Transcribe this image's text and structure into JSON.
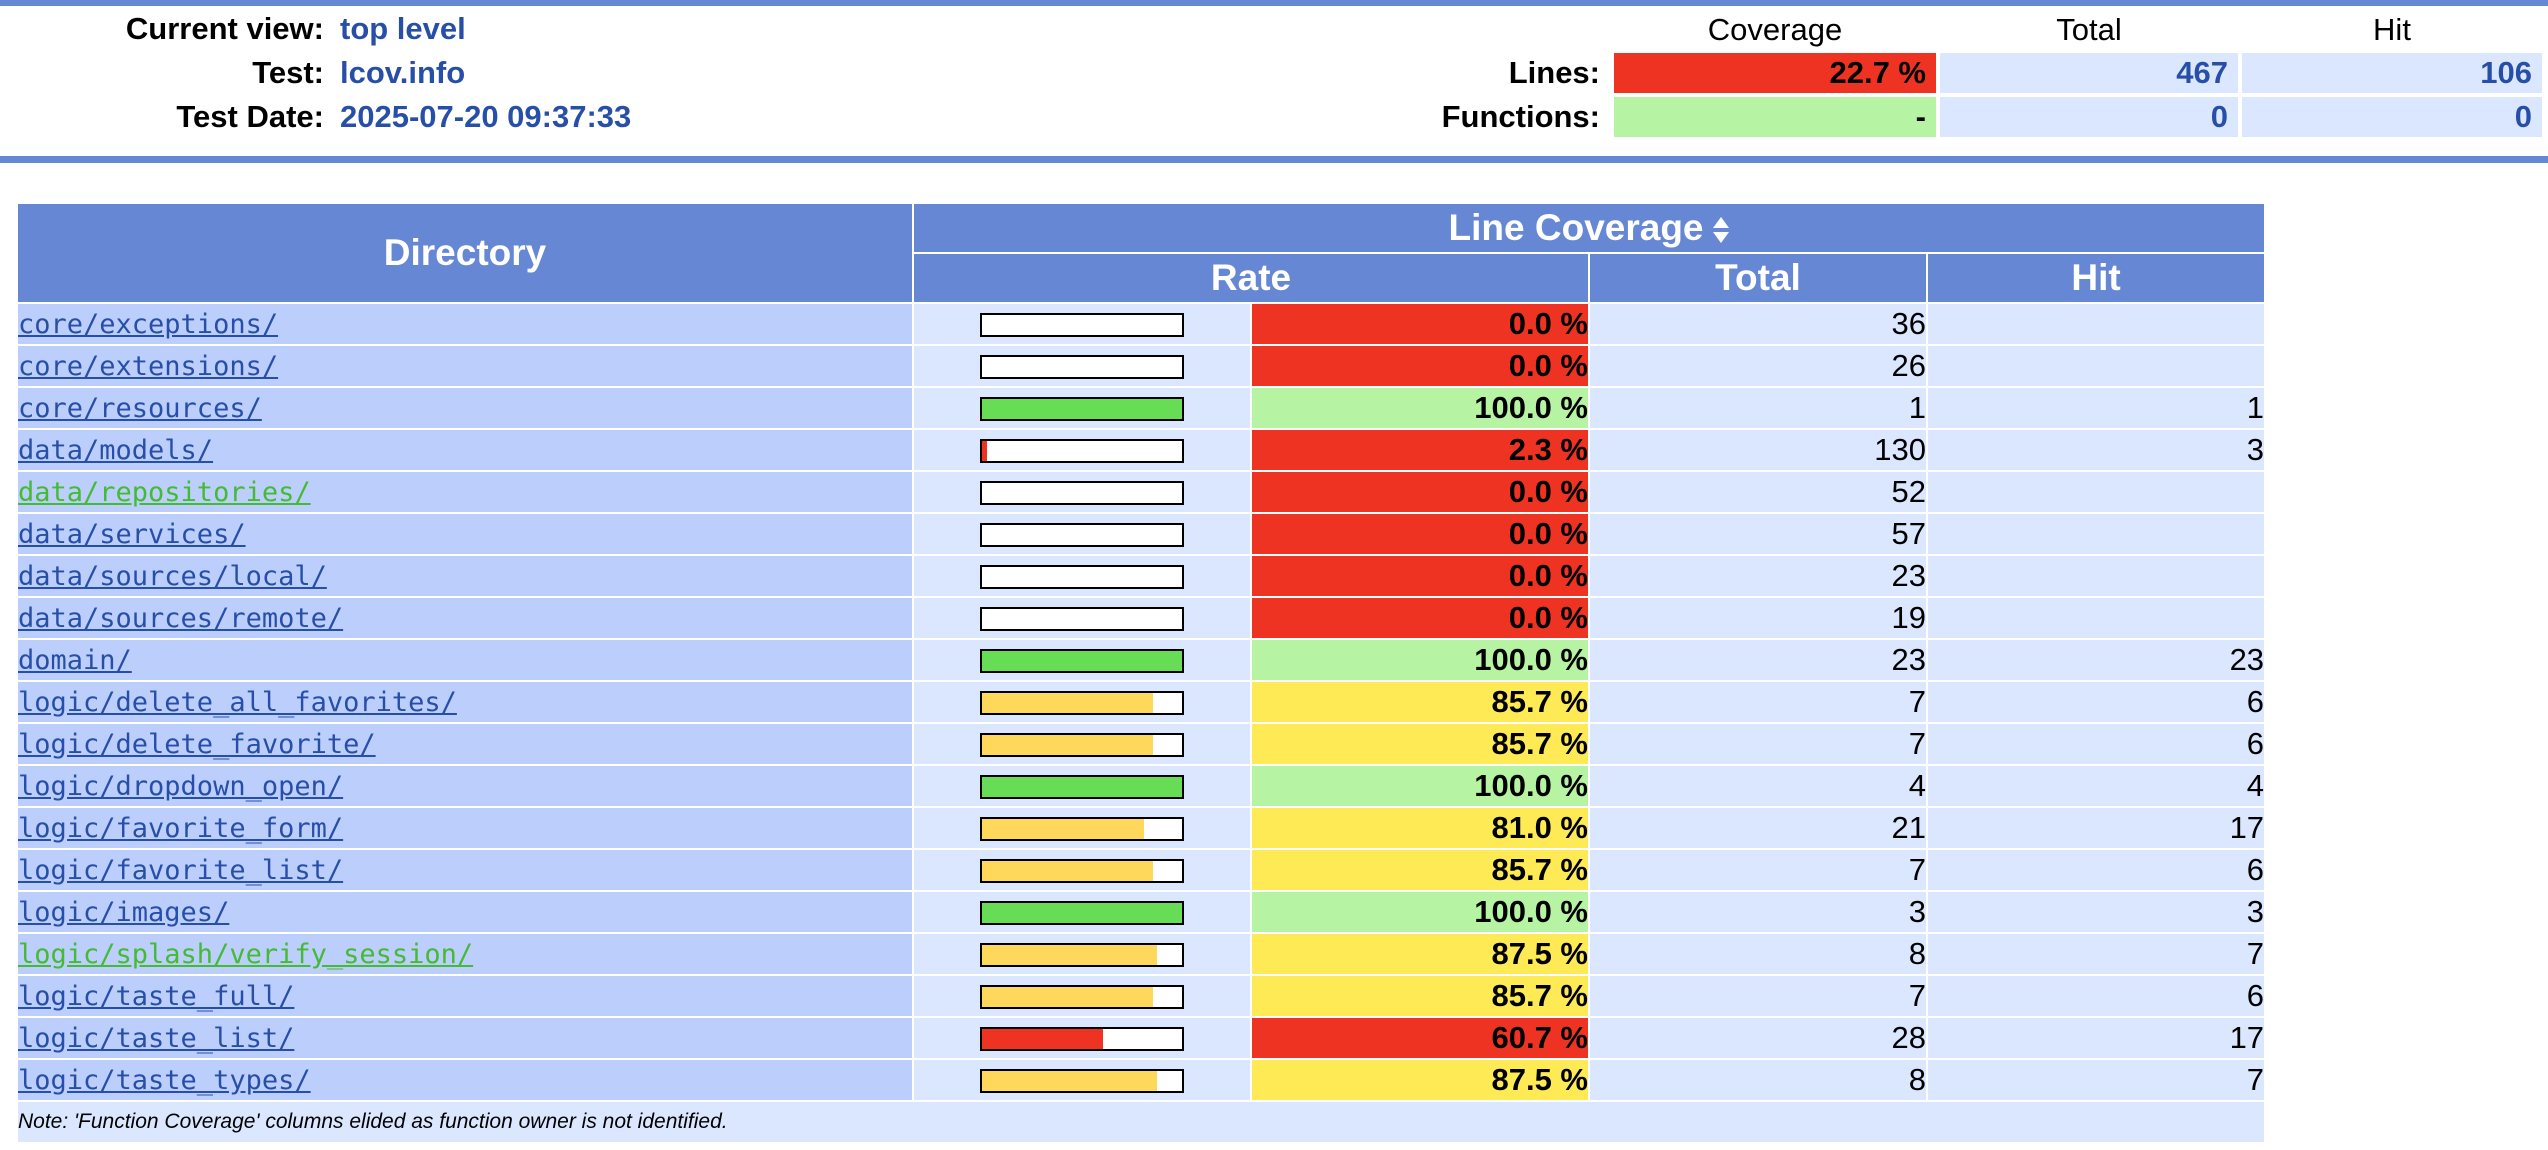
{
  "header": {
    "current_view_label": "Current view:",
    "current_view_value": "top level",
    "test_label": "Test:",
    "test_value": "lcov.info",
    "test_date_label": "Test Date:",
    "test_date_value": "2025-07-20 09:37:33"
  },
  "summary": {
    "col_coverage": "Coverage",
    "col_total": "Total",
    "col_hit": "Hit",
    "lines_label": "Lines:",
    "lines_coverage": "22.7 %",
    "lines_total": "467",
    "lines_hit": "106",
    "functions_label": "Functions:",
    "functions_coverage": "-",
    "functions_total": "0",
    "functions_hit": "0"
  },
  "table": {
    "col_directory": "Directory",
    "col_line_coverage": "Line Coverage",
    "col_rate": "Rate",
    "col_total": "Total",
    "col_hit": "Hit",
    "rows": [
      {
        "name": "core/exceptions/",
        "rate": "0.0 %",
        "pct": 0,
        "total": "36",
        "hit": "",
        "level": "lo",
        "link_color": "blue"
      },
      {
        "name": "core/extensions/",
        "rate": "0.0 %",
        "pct": 0,
        "total": "26",
        "hit": "",
        "level": "lo",
        "link_color": "blue"
      },
      {
        "name": "core/resources/",
        "rate": "100.0 %",
        "pct": 100,
        "total": "1",
        "hit": "1",
        "level": "hi",
        "link_color": "blue"
      },
      {
        "name": "data/models/",
        "rate": "2.3 %",
        "pct": 2.3,
        "total": "130",
        "hit": "3",
        "level": "lo",
        "link_color": "blue"
      },
      {
        "name": "data/repositories/",
        "rate": "0.0 %",
        "pct": 0,
        "total": "52",
        "hit": "",
        "level": "lo",
        "link_color": "green"
      },
      {
        "name": "data/services/",
        "rate": "0.0 %",
        "pct": 0,
        "total": "57",
        "hit": "",
        "level": "lo",
        "link_color": "blue"
      },
      {
        "name": "data/sources/local/",
        "rate": "0.0 %",
        "pct": 0,
        "total": "23",
        "hit": "",
        "level": "lo",
        "link_color": "blue"
      },
      {
        "name": "data/sources/remote/",
        "rate": "0.0 %",
        "pct": 0,
        "total": "19",
        "hit": "",
        "level": "lo",
        "link_color": "blue"
      },
      {
        "name": "domain/",
        "rate": "100.0 %",
        "pct": 100,
        "total": "23",
        "hit": "23",
        "level": "hi",
        "link_color": "blue"
      },
      {
        "name": "logic/delete_all_favorites/",
        "rate": "85.7 %",
        "pct": 85.7,
        "total": "7",
        "hit": "6",
        "level": "med",
        "link_color": "blue"
      },
      {
        "name": "logic/delete_favorite/",
        "rate": "85.7 %",
        "pct": 85.7,
        "total": "7",
        "hit": "6",
        "level": "med",
        "link_color": "blue"
      },
      {
        "name": "logic/dropdown_open/",
        "rate": "100.0 %",
        "pct": 100,
        "total": "4",
        "hit": "4",
        "level": "hi",
        "link_color": "blue"
      },
      {
        "name": "logic/favorite_form/",
        "rate": "81.0 %",
        "pct": 81,
        "total": "21",
        "hit": "17",
        "level": "med",
        "link_color": "blue"
      },
      {
        "name": "logic/favorite_list/",
        "rate": "85.7 %",
        "pct": 85.7,
        "total": "7",
        "hit": "6",
        "level": "med",
        "link_color": "blue"
      },
      {
        "name": "logic/images/",
        "rate": "100.0 %",
        "pct": 100,
        "total": "3",
        "hit": "3",
        "level": "hi",
        "link_color": "blue"
      },
      {
        "name": "logic/splash/verify_session/",
        "rate": "87.5 %",
        "pct": 87.5,
        "total": "8",
        "hit": "7",
        "level": "med",
        "link_color": "green"
      },
      {
        "name": "logic/taste_full/",
        "rate": "85.7 %",
        "pct": 85.7,
        "total": "7",
        "hit": "6",
        "level": "med",
        "link_color": "blue"
      },
      {
        "name": "logic/taste_list/",
        "rate": "60.7 %",
        "pct": 60.7,
        "total": "28",
        "hit": "17",
        "level": "lo",
        "link_color": "blue"
      },
      {
        "name": "logic/taste_types/",
        "rate": "87.5 %",
        "pct": 87.5,
        "total": "8",
        "hit": "7",
        "level": "med",
        "link_color": "blue"
      }
    ],
    "note": "Note: 'Function Coverage' columns elided as function owner is not identified."
  },
  "colors": {
    "rule": "#6688d4",
    "header_value": "#284fa8",
    "bar_lo": "#ee3322",
    "bar_med": "#fdd85a",
    "bar_hi": "#66dd55",
    "link_blue": "#284fa8",
    "link_green": "#44bb33"
  }
}
